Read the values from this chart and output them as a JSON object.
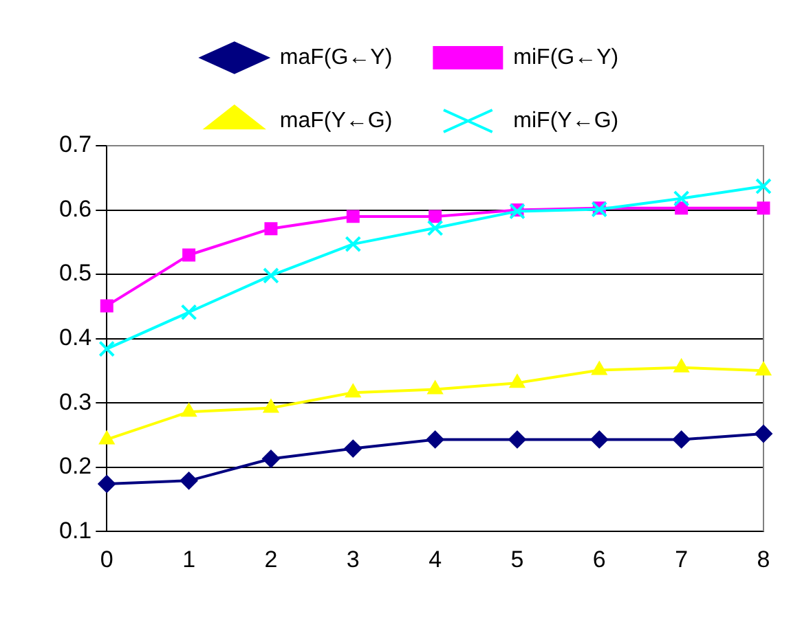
{
  "chart_data": {
    "type": "line",
    "categories": [
      "0",
      "1",
      "2",
      "3",
      "4",
      "5",
      "6",
      "7",
      "8"
    ],
    "series": [
      {
        "name": "maF(G←Y)",
        "color": "#000080",
        "marker": "diamond",
        "values": [
          0.174,
          0.179,
          0.213,
          0.229,
          0.243,
          0.243,
          0.243,
          0.243,
          0.252
        ]
      },
      {
        "name": "miF(G←Y)",
        "color": "#ff00ff",
        "marker": "square",
        "values": [
          0.451,
          0.53,
          0.571,
          0.59,
          0.59,
          0.6,
          0.603,
          0.603,
          0.603
        ]
      },
      {
        "name": "maF(Y←G)",
        "color": "#ffff00",
        "marker": "triangle",
        "values": [
          0.243,
          0.286,
          0.292,
          0.316,
          0.321,
          0.331,
          0.351,
          0.355,
          0.35
        ]
      },
      {
        "name": "miF(Y←G)",
        "color": "#00ffff",
        "marker": "cross",
        "values": [
          0.384,
          0.441,
          0.498,
          0.547,
          0.572,
          0.598,
          0.601,
          0.618,
          0.637
        ]
      }
    ],
    "ylim": [
      0.1,
      0.7
    ],
    "yticks": [
      0.1,
      0.2,
      0.3,
      0.4,
      0.5,
      0.6,
      0.7
    ],
    "grid": "y",
    "legend": "top"
  }
}
